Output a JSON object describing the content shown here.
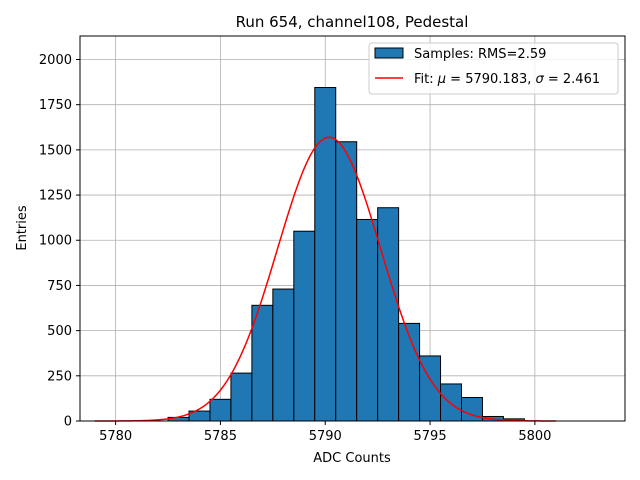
{
  "chart_data": {
    "type": "bar",
    "title": "Run 654, channel108, Pedestal",
    "xlabel": "ADC Counts",
    "ylabel": "Entries",
    "xlim": [
      5778.3,
      5804.3
    ],
    "ylim": [
      0,
      2130
    ],
    "xticks": [
      5780,
      5785,
      5790,
      5795,
      5800
    ],
    "yticks": [
      0,
      250,
      500,
      750,
      1000,
      1250,
      1500,
      1750,
      2000
    ],
    "grid": true,
    "legend_position": "top-right",
    "bin_width": 1,
    "bins": [
      {
        "x": 5783,
        "count": 20
      },
      {
        "x": 5784,
        "count": 55
      },
      {
        "x": 5785,
        "count": 120
      },
      {
        "x": 5786,
        "count": 265
      },
      {
        "x": 5787,
        "count": 640
      },
      {
        "x": 5788,
        "count": 730
      },
      {
        "x": 5789,
        "count": 1050
      },
      {
        "x": 5790,
        "count": 1845
      },
      {
        "x": 5791,
        "count": 1545
      },
      {
        "x": 5792,
        "count": 1115
      },
      {
        "x": 5793,
        "count": 1180
      },
      {
        "x": 5794,
        "count": 540
      },
      {
        "x": 5795,
        "count": 360
      },
      {
        "x": 5796,
        "count": 205
      },
      {
        "x": 5797,
        "count": 130
      },
      {
        "x": 5798,
        "count": 25
      },
      {
        "x": 5799,
        "count": 12
      }
    ],
    "fit": {
      "mu": 5790.183,
      "sigma": 2.461,
      "amplitude": 1570,
      "x_range": [
        5779,
        5801
      ]
    },
    "colors": {
      "bars": "#1f77b4",
      "bar_edge": "#000000",
      "fit_line": "#ff0000",
      "grid": "#b0b0b0"
    },
    "legend": [
      {
        "label": "Samples: RMS=2.59"
      },
      {
        "label_prefix": "Fit: ",
        "mu_symbol": "μ",
        "mu_text": " = 5790.183, ",
        "sigma_symbol": "σ",
        "sigma_text": " = 2.461"
      }
    ]
  }
}
